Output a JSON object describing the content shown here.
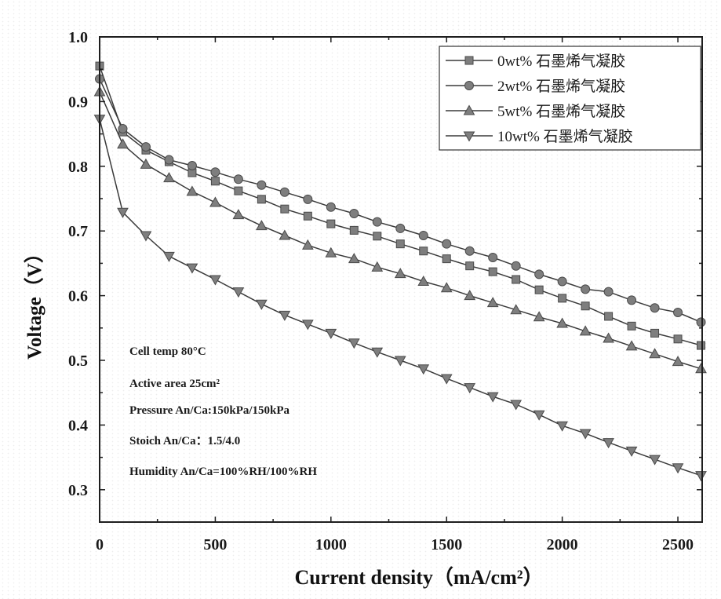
{
  "chart_data": {
    "type": "line",
    "title": "",
    "xlabel": "Current density（mA/cm²）",
    "ylabel": "Voltage（V）",
    "xlim": [
      0,
      2605
    ],
    "ylim": [
      0.25,
      1.0
    ],
    "xtick_values": [
      0,
      500,
      1000,
      1500,
      2000,
      2500
    ],
    "xtick_labels": [
      "0",
      "500",
      "1000",
      "1500",
      "2000",
      "2500"
    ],
    "ytick_values": [
      0.3,
      0.4,
      0.5,
      0.6,
      0.7,
      0.8,
      0.9,
      1.0
    ],
    "ytick_labels": [
      "0.3",
      "0.4",
      "0.5",
      "0.6",
      "0.7",
      "0.8",
      "0.9",
      "1.0"
    ],
    "grid": false,
    "legend_position": "top-right",
    "x": [
      0,
      100,
      200,
      300,
      400,
      500,
      600,
      700,
      800,
      900,
      1000,
      1100,
      1200,
      1300,
      1400,
      1500,
      1600,
      1700,
      1800,
      1900,
      2000,
      2100,
      2200,
      2300,
      2400,
      2500,
      2600
    ],
    "series": [
      {
        "id": "0wt",
        "name": "0wt% 石墨烯气凝胶",
        "marker": "square",
        "values": [
          0.955,
          0.853,
          0.825,
          0.807,
          0.79,
          0.777,
          0.762,
          0.749,
          0.734,
          0.723,
          0.711,
          0.701,
          0.692,
          0.68,
          0.669,
          0.657,
          0.646,
          0.637,
          0.625,
          0.609,
          0.596,
          0.584,
          0.568,
          0.553,
          0.542,
          0.533,
          0.523
        ]
      },
      {
        "id": "2wt",
        "name": "2wt% 石墨烯气凝胶",
        "marker": "circle",
        "values": [
          0.935,
          0.858,
          0.83,
          0.81,
          0.801,
          0.791,
          0.78,
          0.771,
          0.76,
          0.749,
          0.737,
          0.727,
          0.714,
          0.704,
          0.693,
          0.68,
          0.669,
          0.659,
          0.646,
          0.633,
          0.622,
          0.61,
          0.606,
          0.593,
          0.581,
          0.574,
          0.559
        ]
      },
      {
        "id": "5wt",
        "name": "5wt% 石墨烯气凝胶",
        "marker": "triangle-up",
        "values": [
          0.915,
          0.834,
          0.803,
          0.782,
          0.761,
          0.744,
          0.725,
          0.708,
          0.693,
          0.678,
          0.666,
          0.657,
          0.644,
          0.634,
          0.622,
          0.612,
          0.6,
          0.589,
          0.578,
          0.567,
          0.557,
          0.545,
          0.534,
          0.522,
          0.51,
          0.498,
          0.487
        ]
      },
      {
        "id": "10wt",
        "name": "10wt% 石墨烯气凝胶",
        "marker": "triangle-down",
        "values": [
          0.873,
          0.729,
          0.693,
          0.661,
          0.643,
          0.625,
          0.606,
          0.587,
          0.57,
          0.556,
          0.542,
          0.527,
          0.513,
          0.5,
          0.487,
          0.472,
          0.458,
          0.444,
          0.432,
          0.416,
          0.399,
          0.387,
          0.373,
          0.36,
          0.347,
          0.334,
          0.322
        ]
      }
    ],
    "annotations": [
      "Cell temp 80°C",
      "Active area 25cm²",
      "Pressure An/Ca:150kPa/150kPa",
      "Stoich An/Ca：1.5/4.0",
      "Humidity An/Ca=100%RH/100%RH"
    ],
    "style": {
      "line_color": "#3a3a3a",
      "marker_fill": "#7e7e7e",
      "marker_stroke": "#4a4a4a",
      "axis_color": "#1e1e1e"
    }
  }
}
